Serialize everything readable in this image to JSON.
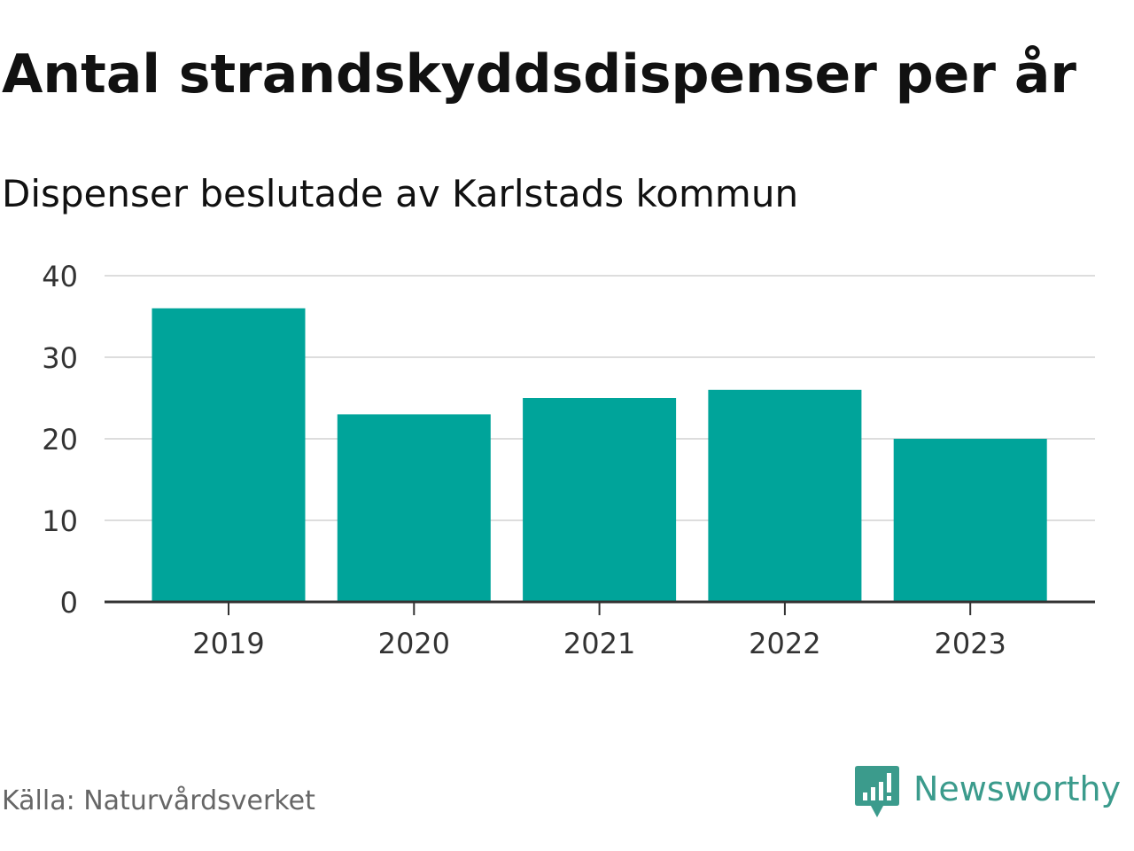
{
  "chart_data": {
    "type": "bar",
    "title": "Antal strandskyddsdispenser per år",
    "subtitle": "Dispenser beslutade av Karlstads kommun",
    "categories": [
      "2019",
      "2020",
      "2021",
      "2022",
      "2023"
    ],
    "values": [
      36,
      23,
      25,
      26,
      20
    ],
    "yticks": [
      "0",
      "10",
      "20",
      "30",
      "40"
    ],
    "ylim": [
      0,
      40
    ],
    "xlabel": "",
    "ylabel": "",
    "grid": true,
    "bar_color": "#00a49a"
  },
  "footer": {
    "source": "Källa: Naturvårdsverket",
    "brand": "Newsworthy",
    "brand_icon": "newsworthy-logo-icon",
    "brand_color": "#3b9b8c"
  }
}
